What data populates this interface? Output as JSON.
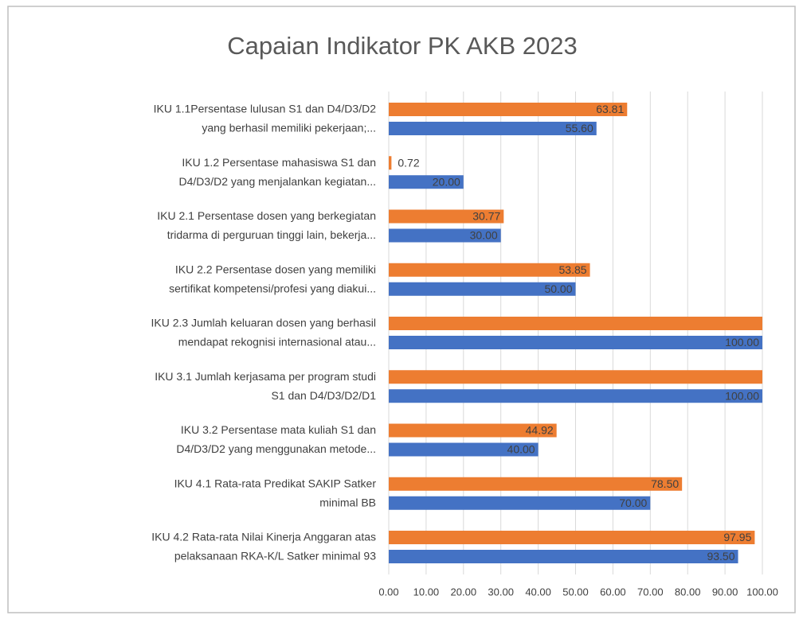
{
  "chart_data": {
    "type": "hbar",
    "title": "Capaian Indikator PK AKB 2023",
    "categories": [
      [
        "IKU 1.1Persentase lulusan S1 dan D4/D3/D2",
        "yang berhasil memiliki pekerjaan;..."
      ],
      [
        "IKU 1.2 Persentase mahasiswa S1 dan",
        "D4/D3/D2 yang menjalankan kegiatan..."
      ],
      [
        "IKU 2.1 Persentase dosen yang berkegiatan",
        "tridarma di perguruan tinggi lain, bekerja..."
      ],
      [
        "IKU 2.2 Persentase dosen yang memiliki",
        "sertifikat kompetensi/profesi yang diakui..."
      ],
      [
        "IKU 2.3 Jumlah keluaran dosen yang berhasil",
        "mendapat rekognisi internasional atau..."
      ],
      [
        "IKU 3.1 Jumlah kerjasama per program studi",
        "S1 dan D4/D3/D2/D1"
      ],
      [
        "IKU 3.2 Persentase mata kuliah S1 dan",
        "D4/D3/D2 yang menggunakan metode..."
      ],
      [
        "IKU 4.1 Rata-rata Predikat SAKIP Satker",
        "minimal BB"
      ],
      [
        "IKU 4.2 Rata-rata Nilai Kinerja Anggaran atas",
        "pelaksanaan RKA-K/L Satker minimal 93"
      ]
    ],
    "series": [
      {
        "color": "#ED7D31",
        "values": [
          63.81,
          0.72,
          30.77,
          53.85,
          100,
          100,
          44.92,
          78.5,
          97.95
        ],
        "value_labels": [
          "63.81",
          "0.72",
          "30.77",
          "53.85",
          null,
          null,
          "44.92",
          "78.50",
          "97.95"
        ]
      },
      {
        "color": "#4472C4",
        "values": [
          55.6,
          20,
          30,
          50,
          100,
          100,
          40,
          70,
          93.5
        ],
        "value_labels": [
          "55.60",
          "20.00",
          "30.00",
          "50.00",
          "100.00",
          "100.00",
          "40.00",
          "70.00",
          "93.50"
        ]
      }
    ],
    "xlim": [
      0,
      100
    ],
    "xticks": [
      {
        "value": 0,
        "label": "0.00"
      },
      {
        "value": 10,
        "label": "10.00"
      },
      {
        "value": 20,
        "label": "20.00"
      },
      {
        "value": 30,
        "label": "30.00"
      },
      {
        "value": 40,
        "label": "40.00"
      },
      {
        "value": 50,
        "label": "50.00"
      },
      {
        "value": 60,
        "label": "60.00"
      },
      {
        "value": 70,
        "label": "70.00"
      },
      {
        "value": 80,
        "label": "80.00"
      },
      {
        "value": 90,
        "label": "90.00"
      },
      {
        "value": 100,
        "label": "100.00"
      }
    ],
    "grid": true
  }
}
